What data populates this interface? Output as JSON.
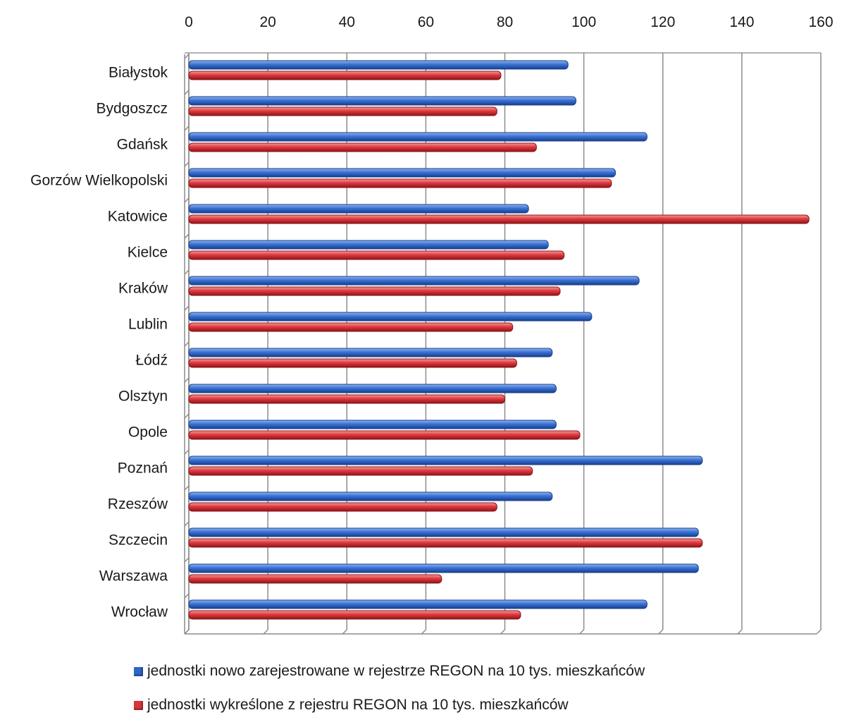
{
  "chart_data": {
    "type": "bar",
    "orientation": "horizontal",
    "categories": [
      "Białystok",
      "Bydgoszcz",
      "Gdańsk",
      "Gorzów Wielkopolski",
      "Katowice",
      "Kielce",
      "Kraków",
      "Lublin",
      "Łódź",
      "Olsztyn",
      "Opole",
      "Poznań",
      "Rzeszów",
      "Szczecin",
      "Warszawa",
      "Wrocław"
    ],
    "series": [
      {
        "name": "jednostki nowo zarejestrowane w rejestrze REGON na 10 tys. mieszkańców",
        "color": "#2f67c8",
        "values": [
          96,
          98,
          116,
          108,
          86,
          91,
          114,
          102,
          92,
          93,
          93,
          130,
          92,
          129,
          129,
          116
        ]
      },
      {
        "name": "jednostki wykreślone z rejestru REGON na 10 tys. mieszkańców",
        "color": "#d7353a",
        "values": [
          79,
          78,
          88,
          107,
          157,
          95,
          94,
          82,
          83,
          80,
          99,
          87,
          78,
          130,
          64,
          84
        ]
      }
    ],
    "xlim": [
      0,
      160
    ],
    "xticks": [
      0,
      20,
      40,
      60,
      80,
      100,
      120,
      140,
      160
    ],
    "grid": true,
    "legend_position": "bottom"
  }
}
